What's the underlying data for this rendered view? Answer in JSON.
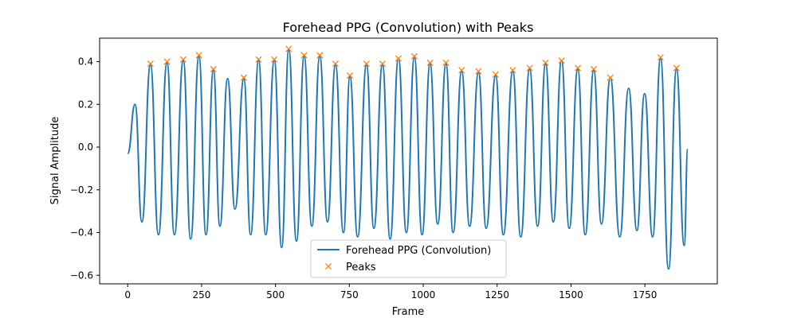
{
  "chart_data": {
    "type": "line",
    "title": "Forehead PPG (Convolution) with Peaks",
    "xlabel": "Frame",
    "ylabel": "Signal Amplitude",
    "xlim": [
      -95,
      1995
    ],
    "ylim": [
      -0.64,
      0.51
    ],
    "xticks": [
      0,
      250,
      500,
      750,
      1000,
      1250,
      1500,
      1750
    ],
    "xtick_labels": [
      "0",
      "250",
      "500",
      "750",
      "1000",
      "1250",
      "1500",
      "1750"
    ],
    "yticks": [
      -0.6,
      -0.4,
      -0.2,
      0.0,
      0.2,
      0.4
    ],
    "ytick_labels": [
      "−0.6",
      "−0.4",
      "−0.2",
      "0.0",
      "0.2",
      "0.4"
    ],
    "grid": false,
    "legend": {
      "position": "lower-center"
    },
    "colors": {
      "signal": "#1f77b4",
      "peaks": "#ff7f0e"
    },
    "series": [
      {
        "name": "Forehead PPG (Convolution)",
        "kind": "line",
        "x": [
          0,
          25,
          48,
          77,
          104,
          133,
          158,
          188,
          213,
          241,
          265,
          290,
          312,
          338,
          363,
          393,
          416,
          443,
          467,
          496,
          521,
          545,
          571,
          597,
          623,
          650,
          676,
          703,
          730,
          752,
          778,
          808,
          833,
          862,
          888,
          916,
          943,
          970,
          996,
          1023,
          1049,
          1077,
          1101,
          1130,
          1157,
          1187,
          1213,
          1245,
          1271,
          1303,
          1330,
          1360,
          1387,
          1414,
          1440,
          1468,
          1494,
          1523,
          1548,
          1577,
          1603,
          1633,
          1665,
          1695,
          1723,
          1749,
          1776,
          1803,
          1830,
          1857,
          1883,
          1895
        ],
        "y": [
          -0.03,
          0.2,
          -0.35,
          0.385,
          -0.41,
          0.395,
          -0.41,
          0.405,
          -0.43,
          0.425,
          -0.41,
          0.36,
          -0.37,
          0.32,
          -0.29,
          0.32,
          -0.41,
          0.405,
          -0.41,
          0.405,
          -0.47,
          0.455,
          -0.44,
          0.425,
          -0.37,
          0.425,
          -0.35,
          0.385,
          -0.4,
          0.33,
          -0.42,
          0.385,
          -0.38,
          0.385,
          -0.43,
          0.415,
          -0.4,
          0.42,
          -0.41,
          0.39,
          -0.36,
          0.39,
          -0.4,
          0.355,
          -0.37,
          0.35,
          -0.38,
          0.335,
          -0.41,
          0.355,
          -0.42,
          0.365,
          -0.37,
          0.39,
          -0.35,
          0.405,
          -0.38,
          0.365,
          -0.41,
          0.36,
          -0.36,
          0.325,
          -0.42,
          0.275,
          -0.39,
          0.25,
          -0.42,
          0.415,
          -0.57,
          0.365,
          -0.46,
          -0.01
        ]
      },
      {
        "name": "Peaks",
        "kind": "marker",
        "x": [
          77,
          133,
          188,
          241,
          290,
          393,
          443,
          496,
          545,
          597,
          650,
          703,
          752,
          808,
          862,
          916,
          970,
          1023,
          1077,
          1130,
          1187,
          1245,
          1303,
          1360,
          1414,
          1468,
          1523,
          1577,
          1633,
          1803,
          1857
        ],
        "y": [
          0.39,
          0.4,
          0.41,
          0.43,
          0.365,
          0.325,
          0.41,
          0.41,
          0.46,
          0.43,
          0.43,
          0.39,
          0.335,
          0.39,
          0.39,
          0.415,
          0.425,
          0.395,
          0.395,
          0.36,
          0.355,
          0.34,
          0.36,
          0.37,
          0.395,
          0.405,
          0.37,
          0.365,
          0.325,
          0.42,
          0.37
        ]
      }
    ]
  }
}
